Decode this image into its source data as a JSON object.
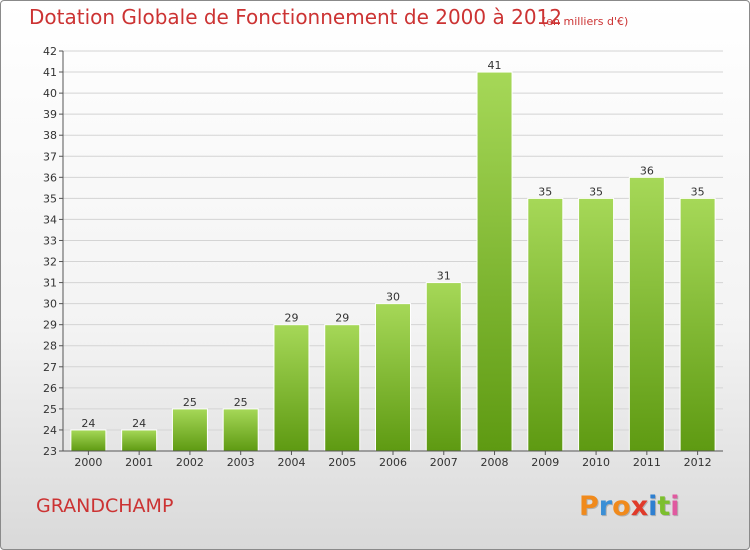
{
  "title": "Dotation Globale de Fonctionnement de 2000 à 2012",
  "subtitle": "(en milliers d'€)",
  "commune": "GRANDCHAMP",
  "logo": {
    "letters": [
      "P",
      "r",
      "o",
      "x",
      "i",
      "t",
      "i"
    ],
    "colors": [
      "#f08a1c",
      "#3a8fd6",
      "#f08a1c",
      "#e03a2a",
      "#2e7fd1",
      "#7cbf2e",
      "#e05aa0"
    ]
  },
  "colors": {
    "bar": "#7fc02a",
    "bar_light": "#a6d858",
    "text_accent": "#cc3333"
  },
  "chart_data": {
    "type": "bar",
    "categories": [
      "2000",
      "2001",
      "2002",
      "2003",
      "2004",
      "2005",
      "2006",
      "2007",
      "2008",
      "2009",
      "2010",
      "2011",
      "2012"
    ],
    "values": [
      24,
      24,
      25,
      25,
      29,
      29,
      30,
      31,
      41,
      35,
      35,
      36,
      35
    ],
    "data_labels": [
      "24",
      "24",
      "25",
      "25",
      "29",
      "29",
      "30",
      "31",
      "41",
      "35",
      "35",
      "36",
      "35"
    ],
    "ylim": [
      23,
      42
    ],
    "yticks": [
      23,
      24,
      25,
      26,
      27,
      28,
      29,
      30,
      31,
      32,
      33,
      34,
      35,
      36,
      37,
      38,
      39,
      40,
      41,
      42
    ],
    "grid": true,
    "xlabel": "",
    "ylabel": ""
  }
}
